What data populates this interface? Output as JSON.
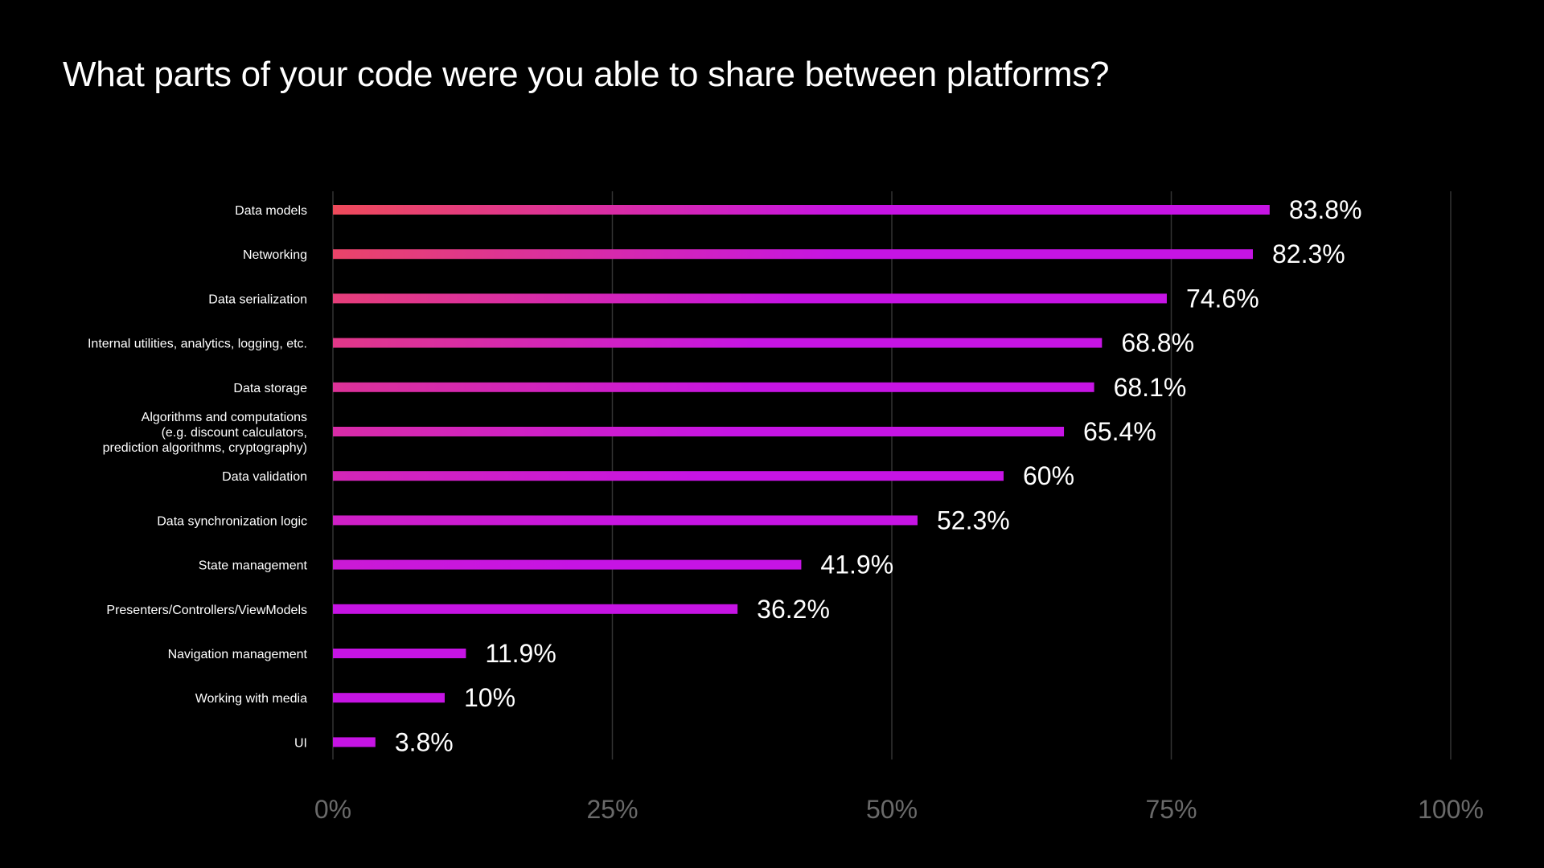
{
  "chart_data": {
    "type": "bar",
    "orientation": "horizontal",
    "title": "What parts of your code were you able to share between platforms?",
    "categories": [
      [
        "Data models"
      ],
      [
        "Networking"
      ],
      [
        "Data serialization"
      ],
      [
        "Internal utilities, analytics, logging, etc."
      ],
      [
        "Data storage"
      ],
      [
        "Algorithms and computations",
        "(e.g. discount calculators,",
        "prediction algorithms, cryptography)"
      ],
      [
        "Data validation"
      ],
      [
        "Data synchronization logic"
      ],
      [
        "State management"
      ],
      [
        "Presenters/Controllers/ViewModels"
      ],
      [
        "Navigation management"
      ],
      [
        "Working with media"
      ],
      [
        "UI"
      ]
    ],
    "values": [
      83.8,
      82.3,
      74.6,
      68.8,
      68.1,
      65.4,
      60,
      52.3,
      41.9,
      36.2,
      11.9,
      10,
      3.8
    ],
    "value_labels": [
      "83.8%",
      "82.3%",
      "74.6%",
      "68.8%",
      "68.1%",
      "65.4%",
      "60%",
      "52.3%",
      "41.9%",
      "36.2%",
      "11.9%",
      "10%",
      "3.8%"
    ],
    "xlim": [
      0,
      100
    ],
    "xticks": [
      0,
      25,
      50,
      75,
      100
    ],
    "xtick_labels": [
      "0%",
      "25%",
      "50%",
      "75%",
      "100%"
    ],
    "grid": true,
    "colors": {
      "background": "#000000",
      "bar_start": "#ee4a5a",
      "bar_end": "#c614e4",
      "grid": "#333333",
      "tick_label": "#6a6a6a"
    }
  }
}
